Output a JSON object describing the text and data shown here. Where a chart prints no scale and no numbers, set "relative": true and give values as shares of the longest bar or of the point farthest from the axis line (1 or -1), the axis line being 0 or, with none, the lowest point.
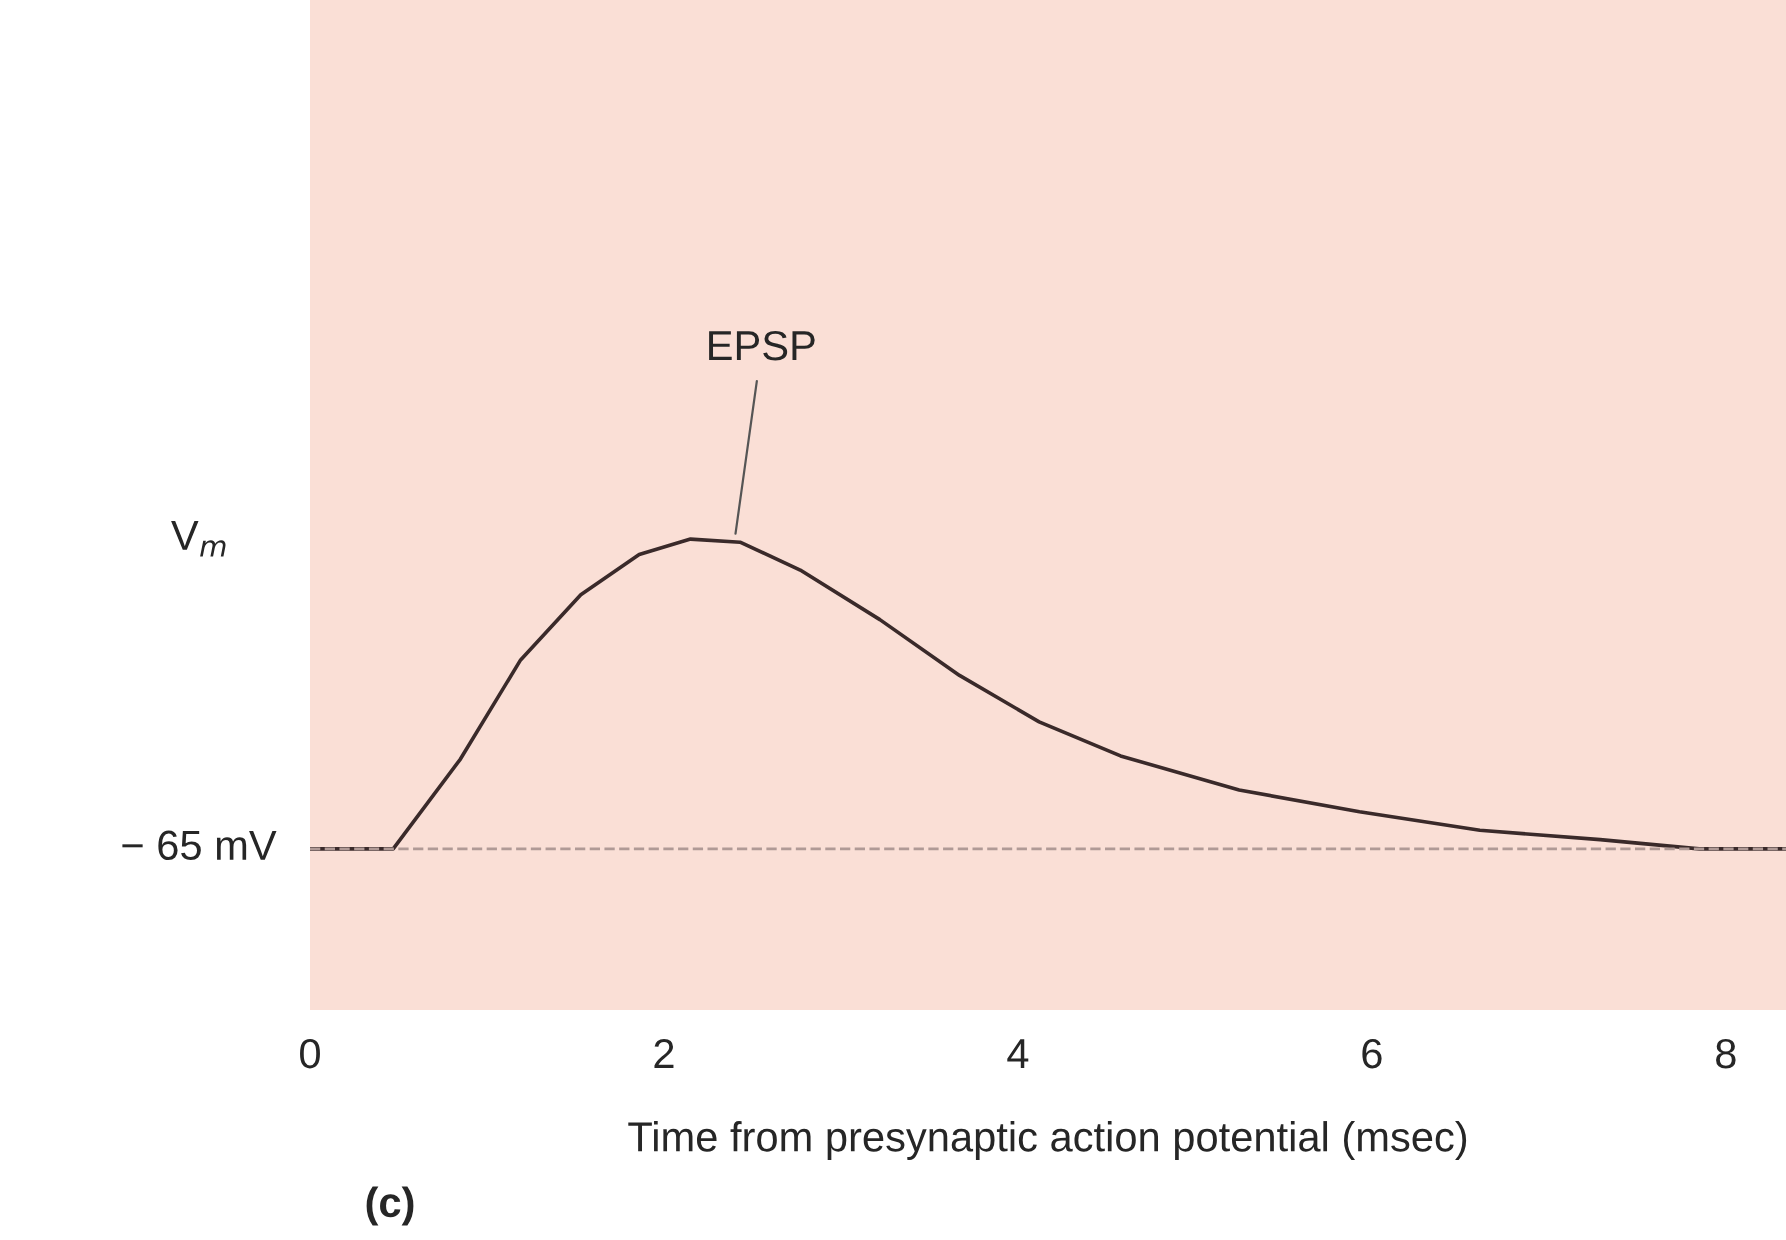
{
  "chart_data": {
    "type": "line",
    "relative": true,
    "xlabel": "Time from presynaptic action potential (msec)",
    "ylabel": "V$_{m}$",
    "series": [
      {
        "color": "#3a2a2a",
        "x": [
          0,
          0.47,
          0.85,
          1.19,
          1.53,
          1.86,
          2.15,
          2.43,
          2.77,
          3.22,
          3.67,
          4.12,
          4.58,
          5.25,
          5.93,
          6.61,
          7.29,
          7.85,
          8.34
        ],
        "values": [
          0,
          0,
          0.29,
          0.61,
          0.82,
          0.95,
          1.0,
          0.99,
          0.9,
          0.74,
          0.56,
          0.41,
          0.3,
          0.19,
          0.12,
          0.06,
          0.03,
          0,
          0
        ]
      }
    ],
    "xlim": [
      0,
      8.34
    ],
    "xticks": [
      0,
      2,
      4,
      6,
      8
    ],
    "tick_labels": "x",
    "grid": false,
    "legend": false,
    "marker": "none",
    "line_style": "solid",
    "ref_lines": [
      {
        "axis": "y",
        "value": 0,
        "label": "− 65 mV",
        "color": "#b09a96",
        "line_style": "dashed"
      }
    ],
    "annotations": [
      {
        "text": "EPSP",
        "x": 2.4,
        "y": 1.0
      },
      "(c)"
    ]
  }
}
